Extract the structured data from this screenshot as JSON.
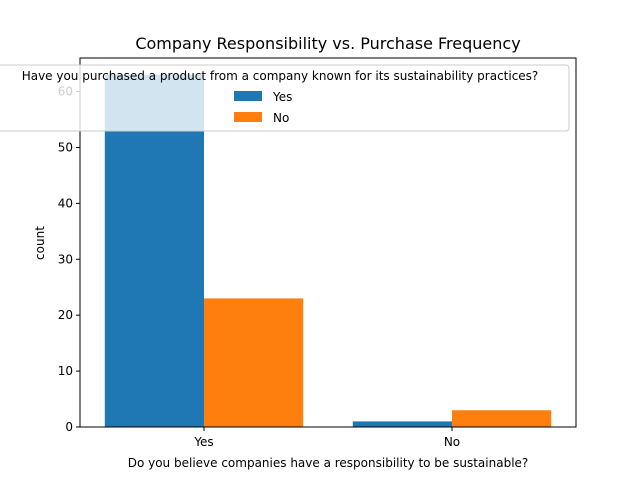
{
  "chart_data": {
    "type": "bar",
    "title": "Company Responsibility vs. Purchase Frequency",
    "xlabel": "Do you believe companies have a responsibility to be sustainable?",
    "ylabel": "count",
    "categories": [
      "Yes",
      "No"
    ],
    "series": [
      {
        "name": "Yes",
        "color": "#1f77b4",
        "values": [
          63,
          1
        ]
      },
      {
        "name": "No",
        "color": "#ff7f0e",
        "values": [
          23,
          3
        ]
      }
    ],
    "ylim": [
      0,
      66
    ],
    "yticks": [
      0,
      10,
      20,
      30,
      40,
      50,
      60
    ],
    "grid": false,
    "legend": {
      "title": "Have you purchased a product from a company known for its sustainability practices?",
      "placement": "top-center"
    }
  }
}
